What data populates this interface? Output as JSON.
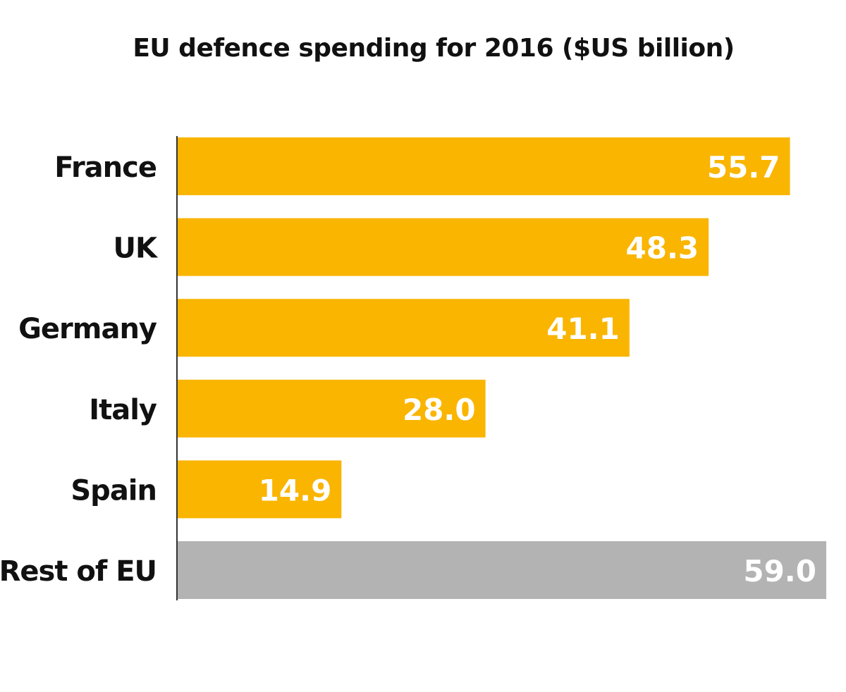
{
  "chart_data": {
    "type": "bar",
    "orientation": "horizontal",
    "title": "EU defence spending for 2016 ($US billion)",
    "categories": [
      "France",
      "UK",
      "Germany",
      "Italy",
      "Spain",
      "Rest of EU"
    ],
    "values": [
      55.7,
      48.3,
      41.1,
      28.0,
      14.9,
      59.0
    ],
    "value_labels": [
      "55.7",
      "48.3",
      "41.1",
      "28.0",
      "14.9",
      "59.0"
    ],
    "colors": [
      "#F9B500",
      "#F9B500",
      "#F9B500",
      "#F9B500",
      "#F9B500",
      "#B3B3B3"
    ],
    "label_color": "#FFFFFF",
    "xlabel": "",
    "ylabel": "",
    "xlim": [
      0,
      59.0
    ],
    "grid": false,
    "legend": "none"
  }
}
